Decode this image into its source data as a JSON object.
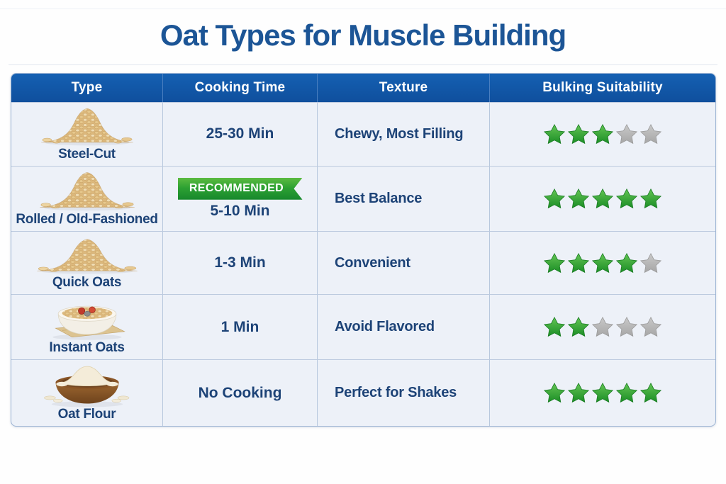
{
  "page": {
    "title": "Oat Types for Muscle Building"
  },
  "table": {
    "headers": [
      "Type",
      "Cooking Time",
      "Texture",
      "Bulking Suitability"
    ],
    "rows": [
      {
        "type": "Steel-Cut",
        "image_icon": "steel-cut-oats-pile-image",
        "cooking_time": "25-30 Min",
        "texture": "Chewy, Most Filling",
        "stars": 3,
        "max_stars": 5
      },
      {
        "type": "Rolled / Old-Fashioned",
        "image_icon": "rolled-oats-pile-image",
        "badge": "RECOMMENDED",
        "cooking_time": "5-10 Min",
        "texture": "Best Balance",
        "stars": 5,
        "max_stars": 5
      },
      {
        "type": "Quick Oats",
        "image_icon": "quick-oats-pile-image",
        "cooking_time": "1-3 Min",
        "texture": "Convenient",
        "stars": 4,
        "max_stars": 5
      },
      {
        "type": "Instant Oats",
        "image_icon": "instant-oats-bowl-image",
        "cooking_time": "1 Min",
        "texture": "Avoid Flavored",
        "stars": 2,
        "max_stars": 5
      },
      {
        "type": "Oat Flour",
        "image_icon": "oat-flour-bowl-image",
        "cooking_time": "No Cooking",
        "texture": "Perfect for Shakes",
        "stars": 5,
        "max_stars": 5
      }
    ]
  },
  "chart_data": {
    "type": "table",
    "title": "Oat Types for Muscle Building",
    "columns": [
      "Type",
      "Cooking Time",
      "Texture",
      "Bulking Suitability"
    ],
    "rows": [
      [
        "Steel-Cut",
        "25-30 Min",
        "Chewy, Most Filling",
        "3/5 stars"
      ],
      [
        "Rolled / Old-Fashioned",
        "5-10 Min (RECOMMENDED)",
        "Best Balance",
        "5/5 stars"
      ],
      [
        "Quick Oats",
        "1-3 Min",
        "Convenient",
        "4/5 stars"
      ],
      [
        "Instant Oats",
        "1 Min",
        "Avoid Flavored",
        "2/5 stars"
      ],
      [
        "Oat Flour",
        "No Cooking",
        "Perfect for Shakes",
        "5/5 stars"
      ]
    ],
    "legend": "green star = suitability point (out of 5)"
  },
  "colors": {
    "title_text": "#1c5596",
    "header_bg": "#1157a8",
    "header_text": "#ffffff",
    "cell_text": "#1d4377",
    "row_bg": "#edf1f8",
    "table_border": "#9db4d4",
    "star_green": "#2e9e2e",
    "star_gray": "#b9b9b9",
    "badge_green": "#2da133"
  }
}
